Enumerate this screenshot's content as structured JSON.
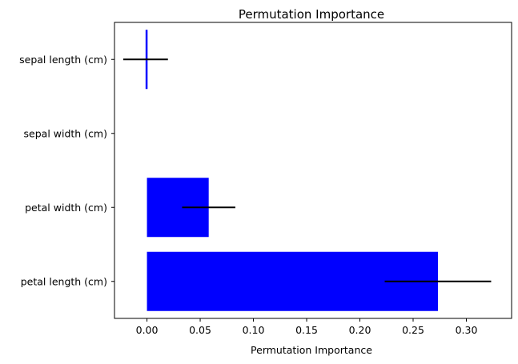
{
  "chart_data": {
    "type": "bar",
    "orientation": "horizontal",
    "title": "Permutation Importance",
    "xlabel": "Permutation Importance",
    "ylabel": "",
    "xlim": [
      -0.0305,
      0.3425
    ],
    "xticks": [
      0.0,
      0.05,
      0.1,
      0.15,
      0.2,
      0.25,
      0.3
    ],
    "xtick_labels": [
      "0.00",
      "0.05",
      "0.10",
      "0.15",
      "0.20",
      "0.25",
      "0.30"
    ],
    "categories": [
      "sepal length (cm)",
      "sepal width (cm)",
      "petal width (cm)",
      "petal length (cm)"
    ],
    "values": [
      -0.0013,
      0.0,
      0.058,
      0.2733
    ],
    "errors": [
      0.021,
      0.0,
      0.025,
      0.05
    ],
    "bar_color": "#0000ff",
    "error_color": "#000000",
    "grid": false,
    "legend": "none"
  }
}
